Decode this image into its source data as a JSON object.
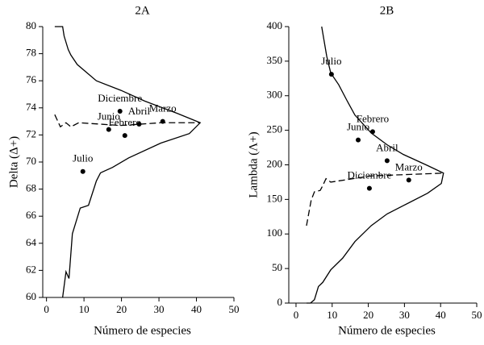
{
  "chart_data": [
    {
      "type": "scatter",
      "title": "2A",
      "x_label": "Número de especies",
      "y_label": "Delta (Δ+)",
      "xlim": [
        -1,
        50
      ],
      "ylim": [
        60,
        80
      ],
      "xticks": [
        0,
        10,
        20,
        30,
        40,
        50
      ],
      "yticks": [
        60,
        62,
        64,
        66,
        68,
        70,
        72,
        74,
        76,
        78,
        80
      ],
      "points": {
        "labels": [
          "Diciembre",
          "Abril",
          "Marzo",
          "Junio",
          "Febrero",
          "Julio"
        ],
        "x": [
          19.6,
          24.7,
          31,
          16.6,
          20.9,
          9.7
        ],
        "values": [
          73.75,
          72.8,
          73.0,
          72.4,
          71.96,
          69.3
        ],
        "color": "#000000"
      },
      "curves": [
        {
          "style": "solid",
          "color": "#000000",
          "x": [
            2.2,
            4.3,
            4.7,
            5.8,
            6.5,
            8.2,
            13.3,
            19.8,
            26.2,
            34.8,
            41,
            38.1,
            30.5,
            21.9,
            17.6,
            14.4,
            13.3,
            11.2,
            9,
            6.9,
            6,
            5.2,
            4.3
          ],
          "values": [
            80,
            80,
            79.3,
            78.3,
            77.9,
            77.2,
            76.0,
            75.3,
            74.5,
            73.6,
            72.9,
            72.1,
            71.4,
            70.3,
            69.6,
            69.2,
            68.6,
            66.8,
            66.6,
            64.7,
            61.4,
            61.9,
            60
          ]
        },
        {
          "style": "dashed",
          "color": "#000000",
          "x": [
            2.2,
            3.7,
            5.2,
            6.5,
            8.6,
            19.8,
            30.5,
            41
          ],
          "values": [
            73.5,
            72.6,
            72.9,
            72.6,
            72.9,
            72.7,
            72.9,
            72.9
          ]
        }
      ]
    },
    {
      "type": "scatter",
      "title": "2B",
      "x_label": "Número de especies",
      "y_label": "Lambda (Λ+)",
      "xlim": [
        -2,
        50
      ],
      "ylim": [
        0,
        400
      ],
      "xticks": [
        0,
        10,
        20,
        30,
        40,
        50
      ],
      "yticks": [
        0,
        50,
        100,
        150,
        200,
        250,
        300,
        350,
        400
      ],
      "points": {
        "labels": [
          "Julio",
          "Febrero",
          "Junio",
          "Abril",
          "Diciembre",
          "Marzo"
        ],
        "x": [
          9.8,
          21.2,
          17.2,
          25.2,
          20.3,
          31.2
        ],
        "values": [
          331,
          248,
          236,
          206,
          166,
          178
        ],
        "color": "#000000"
      },
      "curves": [
        {
          "style": "solid",
          "color": "#000000",
          "x": [
            7.1,
            8.5,
            9.6,
            11.8,
            14.1,
            16.3,
            20.8,
            25.2,
            29.7,
            36.4,
            40.8,
            40.2,
            36.4,
            29.7,
            25.2,
            20.8,
            16.3,
            12.9,
            9.6,
            7.4,
            6.2,
            5.1,
            4,
            2.9
          ],
          "values": [
            400,
            357,
            333,
            316,
            293,
            272,
            246,
            229,
            215,
            199,
            188,
            173,
            159,
            141,
            129,
            112,
            89,
            65,
            48,
            30,
            24,
            5,
            0,
            0
          ]
        },
        {
          "style": "dashed",
          "color": "#000000",
          "x": [
            2.9,
            4.2,
            5.1,
            6.7,
            7.4,
            8.3,
            9.6,
            20.8,
            40.8
          ],
          "values": [
            112,
            149,
            161,
            163,
            170,
            180,
            175,
            184,
            188
          ]
        }
      ]
    }
  ]
}
